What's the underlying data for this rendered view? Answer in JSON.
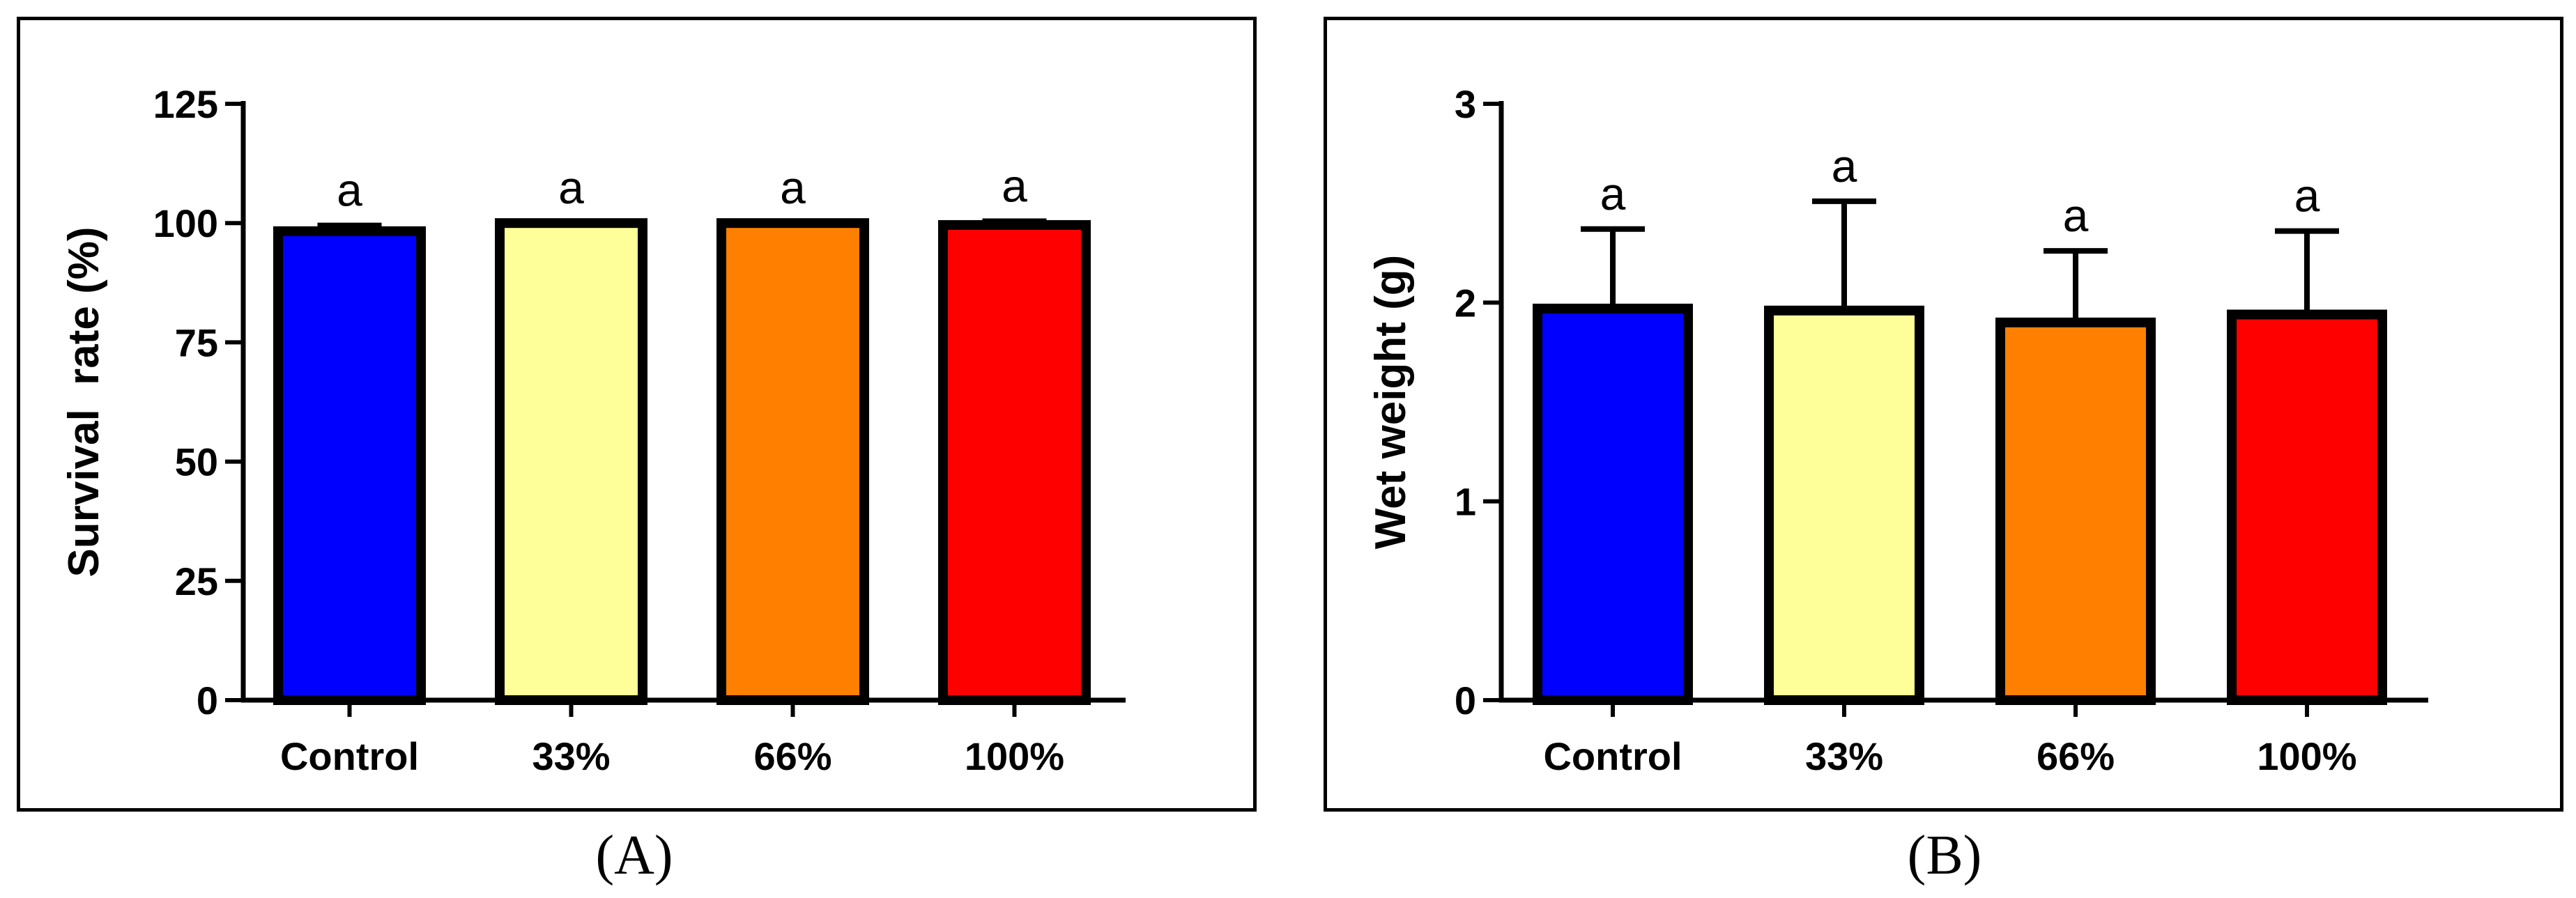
{
  "chart_data": [
    {
      "type": "bar",
      "panel": "A",
      "caption": "(A)",
      "title": "",
      "xlabel": "",
      "ylabel": "Survival  rate (%)",
      "ylim": [
        0,
        125
      ],
      "yticks": [
        0,
        25,
        50,
        75,
        100,
        125
      ],
      "categories": [
        "Control",
        "33%",
        "66%",
        "100%"
      ],
      "values": [
        98.3,
        100,
        100,
        99.6
      ],
      "errors": [
        1.2,
        0,
        0,
        0.8
      ],
      "significance": [
        "a",
        "a",
        "a",
        "a"
      ],
      "colors": [
        "#0000ff",
        "#ffff99",
        "#ff8000",
        "#ff0000"
      ],
      "grid": false
    },
    {
      "type": "bar",
      "panel": "B",
      "caption": "(B)",
      "title": "",
      "xlabel": "",
      "ylabel": "Wet weight (g)",
      "ylim": [
        0,
        3
      ],
      "yticks": [
        0,
        1,
        2,
        3
      ],
      "categories": [
        "Control",
        "33%",
        "66%",
        "100%"
      ],
      "values": [
        1.97,
        1.96,
        1.9,
        1.94
      ],
      "errors": [
        0.4,
        0.55,
        0.36,
        0.42
      ],
      "significance": [
        "a",
        "a",
        "a",
        "a"
      ],
      "colors": [
        "#0000ff",
        "#ffff99",
        "#ff8000",
        "#ff0000"
      ],
      "grid": false
    }
  ]
}
